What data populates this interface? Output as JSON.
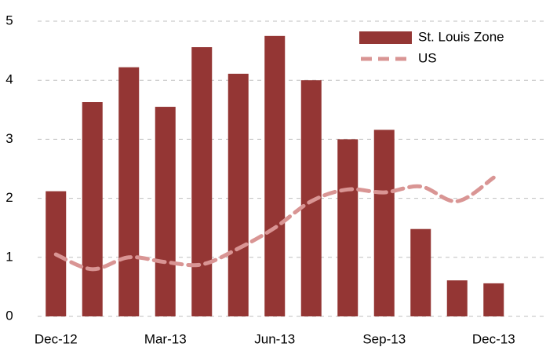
{
  "chart_data": {
    "type": "bar-line",
    "categories": [
      "Dec-12",
      null,
      null,
      "Mar-13",
      null,
      null,
      "Jun-13",
      null,
      null,
      "Sep-13",
      null,
      null,
      "Dec-13"
    ],
    "series": [
      {
        "name": "St. Louis Zone",
        "type": "bar",
        "color": "#943634",
        "values": [
          2.12,
          3.63,
          4.22,
          3.55,
          4.56,
          4.11,
          4.75,
          4.0,
          3.0,
          3.16,
          1.48,
          0.61,
          0.56
        ]
      },
      {
        "name": "US",
        "type": "line",
        "color": "#d99594",
        "values": [
          1.05,
          0.8,
          1.0,
          0.92,
          0.88,
          1.15,
          1.5,
          1.95,
          2.15,
          2.1,
          2.2,
          1.95,
          2.35
        ]
      }
    ],
    "ylim": [
      0,
      5
    ],
    "yticks": [
      0,
      1,
      2,
      3,
      4,
      5
    ],
    "grid": true,
    "legend": "top-right"
  }
}
